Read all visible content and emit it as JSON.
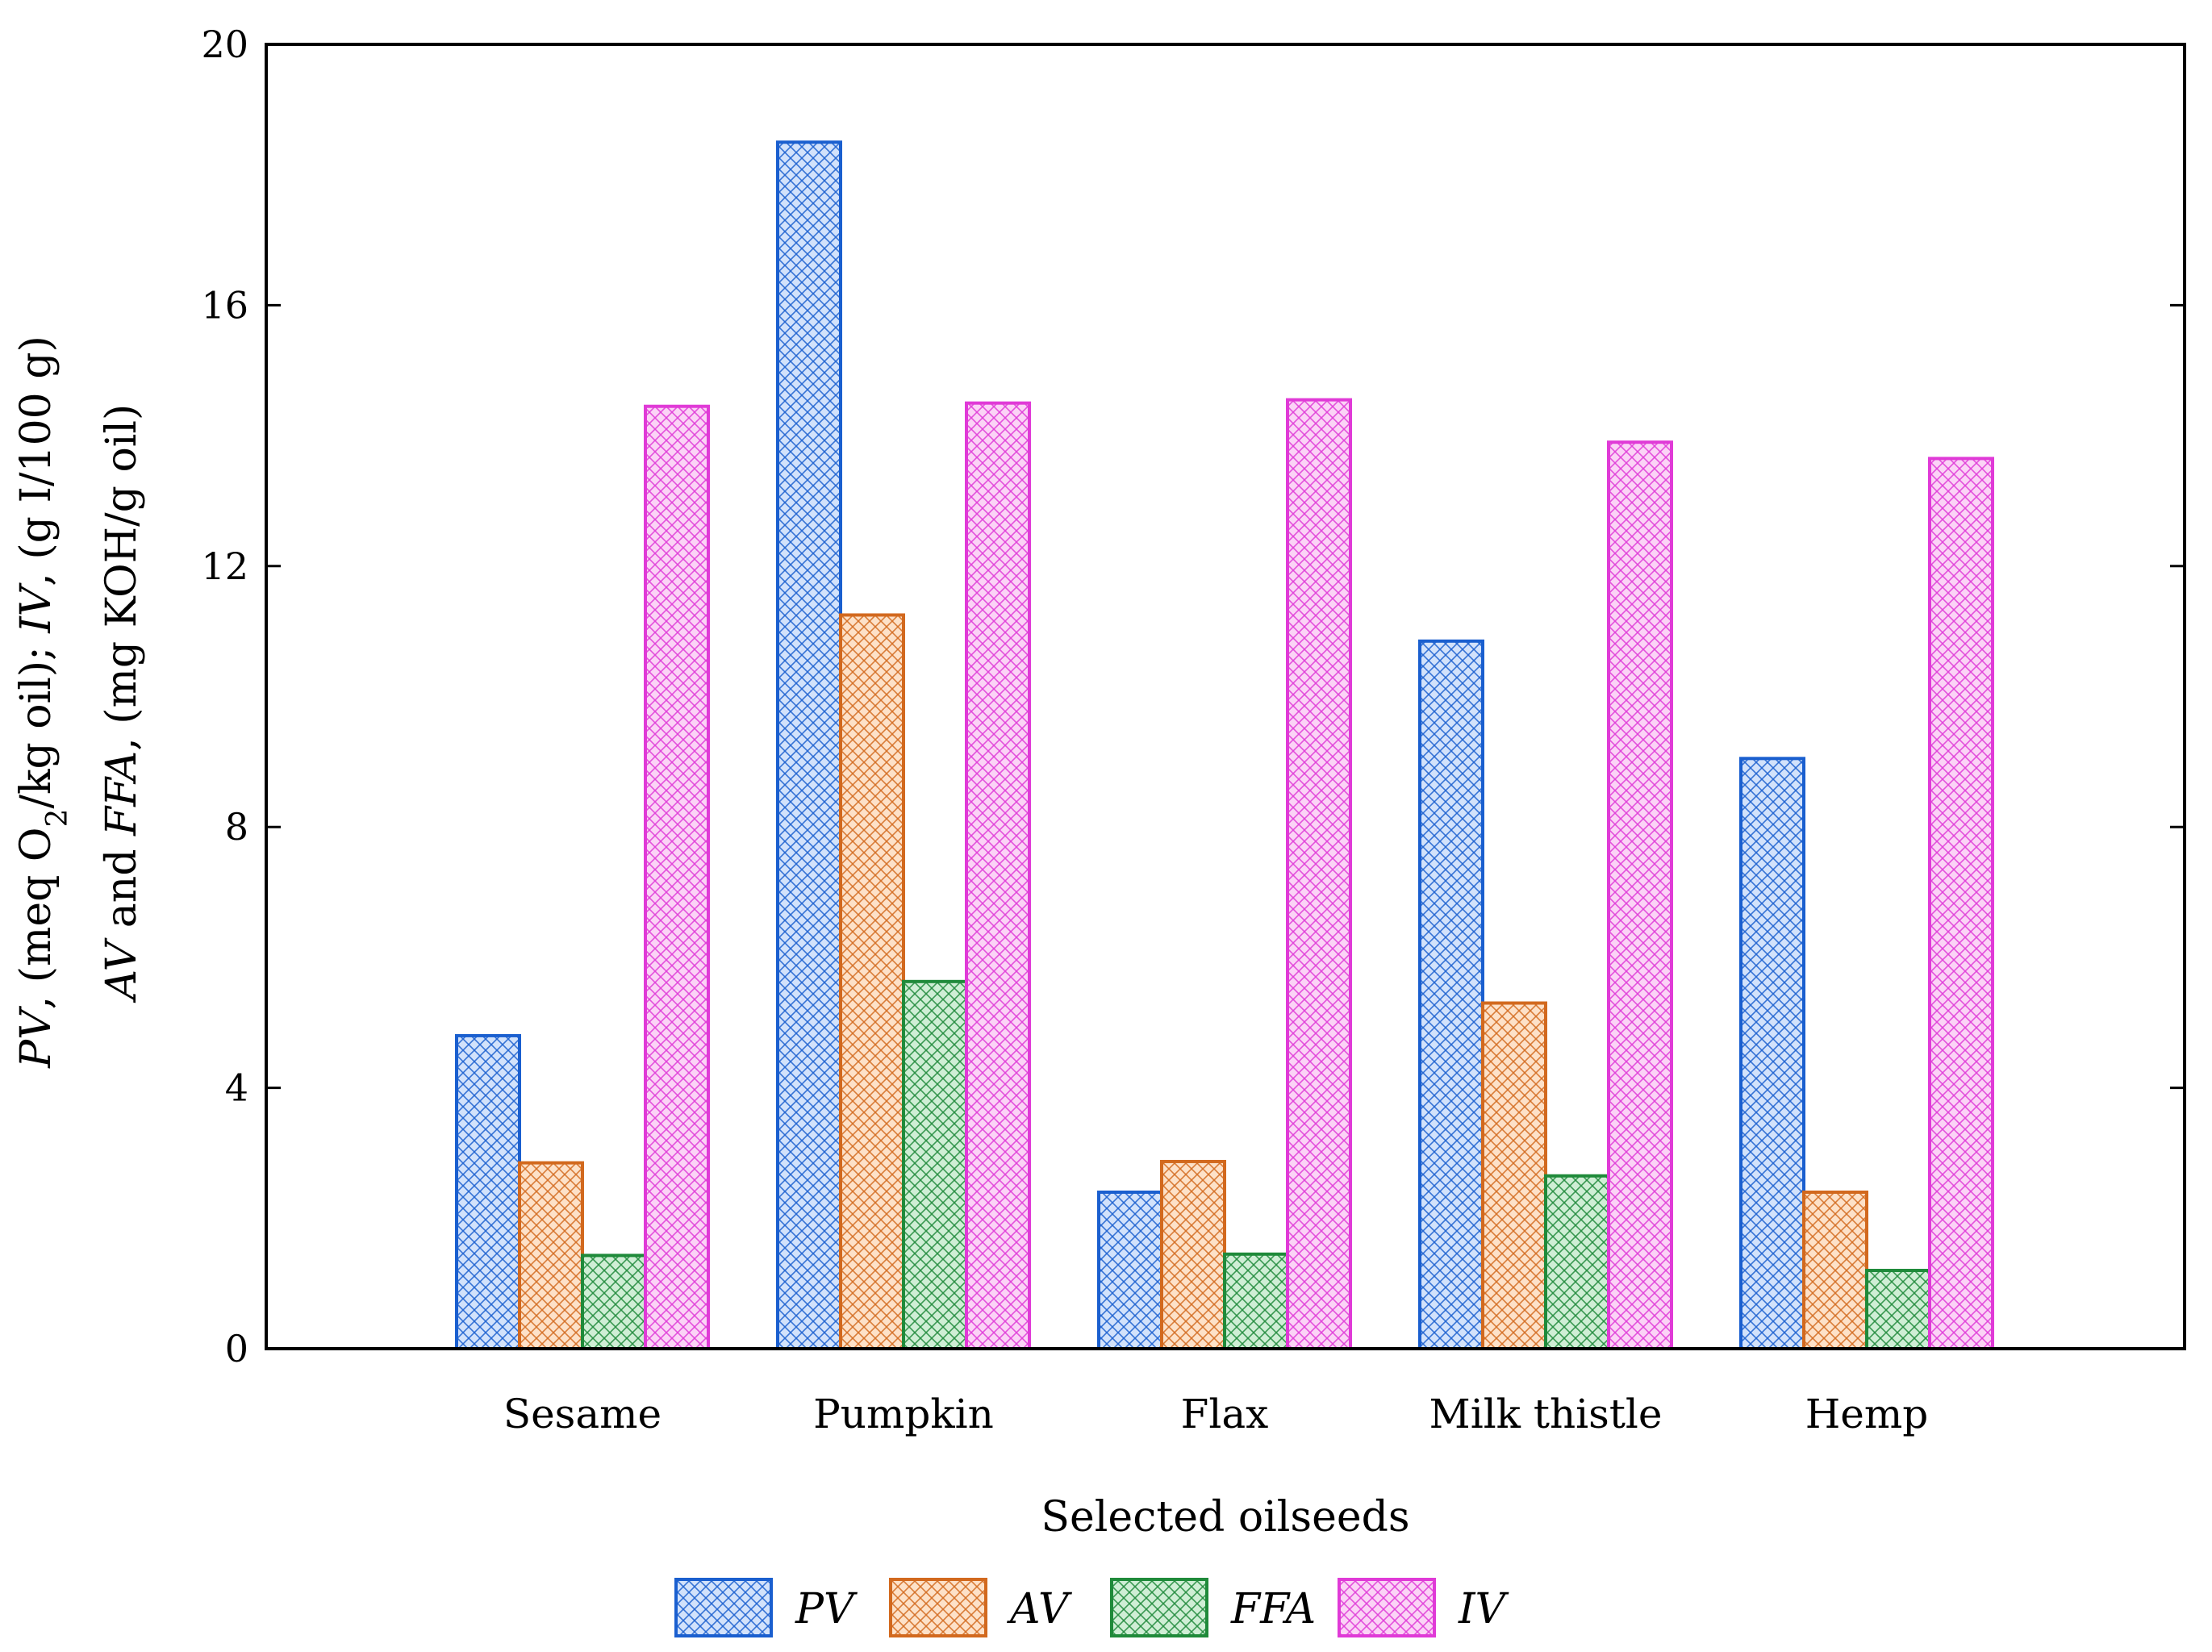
{
  "chart_data": {
    "type": "bar",
    "xlabel": "Selected oilseeds",
    "ylabel_line1": [
      {
        "text": "PV",
        "italic": true
      },
      {
        "text": ", (meq O"
      },
      {
        "text": "2",
        "sub": true
      },
      {
        "text": "/kg oil); "
      },
      {
        "text": "IV",
        "italic": true
      },
      {
        "text": ", (g I/100 g)"
      }
    ],
    "ylabel_line2": [
      {
        "text": "AV",
        "italic": true
      },
      {
        "text": " and "
      },
      {
        "text": "FFA",
        "italic": true
      },
      {
        "text": ", (mg KOH/g oil)"
      }
    ],
    "ylim": [
      0,
      20
    ],
    "yticks": [
      0,
      4,
      8,
      12,
      16,
      20
    ],
    "categories": [
      "Sesame",
      "Pumpkin",
      "Flax",
      "Milk thistle",
      "Hemp"
    ],
    "series": [
      {
        "name": "PV",
        "color": "#1a5fcf",
        "fill": "#d2e2fb",
        "values": [
          4.8,
          18.5,
          2.4,
          10.85,
          9.05
        ]
      },
      {
        "name": "AV",
        "color": "#d2691e",
        "fill": "#fde1c8",
        "values": [
          2.85,
          11.25,
          2.87,
          5.3,
          2.4
        ]
      },
      {
        "name": "FFA",
        "color": "#1f8a3a",
        "fill": "#cfeed5",
        "values": [
          1.43,
          5.63,
          1.45,
          2.65,
          1.2
        ]
      },
      {
        "name": "IV",
        "color": "#e03ad7",
        "fill": "#fbd3f6",
        "values": [
          14.45,
          14.5,
          14.55,
          13.9,
          13.65
        ]
      }
    ],
    "grid": false,
    "legend_position": "bottom-center"
  }
}
